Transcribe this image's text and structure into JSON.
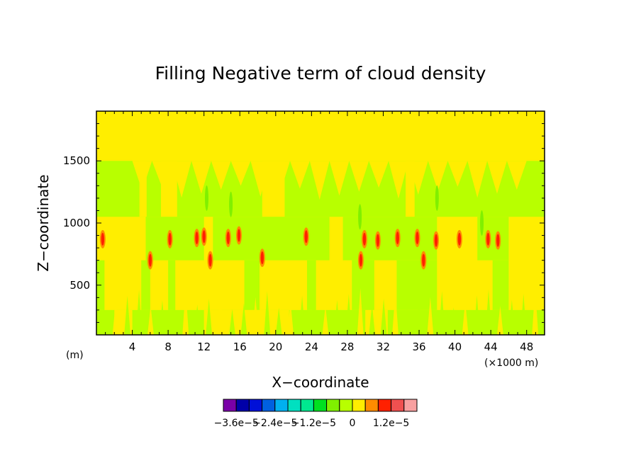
{
  "chart_data": {
    "type": "heatmap",
    "title": "Filling Negative term of cloud density",
    "xlabel": "X−coordinate",
    "ylabel": "Z−coordinate",
    "x_unit": "(m)",
    "x_scale_note": "(×1000 m)",
    "xlim": [
      0,
      50
    ],
    "ylim": [
      100,
      1900
    ],
    "x_ticks": [
      4,
      8,
      12,
      16,
      20,
      24,
      28,
      32,
      36,
      40,
      44,
      48
    ],
    "y_ticks": [
      500,
      1000,
      1500
    ],
    "colorbar": {
      "colors": [
        "#7a00a8",
        "#0000a8",
        "#0010d8",
        "#0060e0",
        "#00b0f0",
        "#00e0c0",
        "#00e890",
        "#00e020",
        "#80f000",
        "#b8ff00",
        "#ffee00",
        "#ff8c00",
        "#ff2000",
        "#f05050",
        "#f8a0a0"
      ],
      "tick_labels": [
        "−3.6e−5",
        "−2.4e−5",
        "−1.2e−5",
        "0",
        "1.2e−5"
      ]
    },
    "field": {
      "top_band_z": [
        1500,
        1900
      ],
      "upper_band_z": [
        1050,
        1500
      ],
      "upper_yellow_gaps_x": [
        [
          4.8,
          5.6
        ],
        [
          7.2,
          9.0
        ],
        [
          18.5,
          21.0
        ],
        [
          34.5,
          35.5
        ]
      ],
      "mid_band_z": [
        700,
        1050
      ],
      "mid_green_x": [
        [
          5.5,
          12
        ],
        [
          13,
          26
        ],
        [
          27.5,
          38
        ],
        [
          42.5,
          46
        ]
      ],
      "lower_band_z": [
        300,
        700
      ],
      "lower_green_x": [
        [
          0,
          0.9
        ],
        [
          5.0,
          6.0
        ],
        [
          8.0,
          8.8
        ],
        [
          16.5,
          18.2
        ],
        [
          23.5,
          24.5
        ],
        [
          28.5,
          31.0
        ],
        [
          33.5,
          38.0
        ],
        [
          44.2,
          46.0
        ]
      ],
      "bottom_band_z": [
        100,
        300
      ],
      "bottom_yellow_x": [
        [
          2.0,
          4.0
        ],
        [
          12.0,
          21.5
        ],
        [
          30.0,
          32.5
        ]
      ],
      "green_spots": [
        [
          12.3,
          1200
        ],
        [
          15.0,
          1150
        ],
        [
          29.4,
          1050
        ],
        [
          38.0,
          1200
        ],
        [
          43.0,
          1000
        ]
      ],
      "red_spots": [
        [
          0.7,
          870
        ],
        [
          6.0,
          700
        ],
        [
          8.2,
          870
        ],
        [
          11.2,
          880
        ],
        [
          12.0,
          890
        ],
        [
          12.7,
          700
        ],
        [
          14.7,
          880
        ],
        [
          15.9,
          900
        ],
        [
          18.5,
          720
        ],
        [
          23.4,
          890
        ],
        [
          29.5,
          700
        ],
        [
          29.9,
          870
        ],
        [
          31.4,
          860
        ],
        [
          33.6,
          880
        ],
        [
          35.8,
          880
        ],
        [
          36.5,
          700
        ],
        [
          37.9,
          860
        ],
        [
          40.5,
          870
        ],
        [
          43.7,
          870
        ],
        [
          44.8,
          860
        ]
      ]
    }
  }
}
